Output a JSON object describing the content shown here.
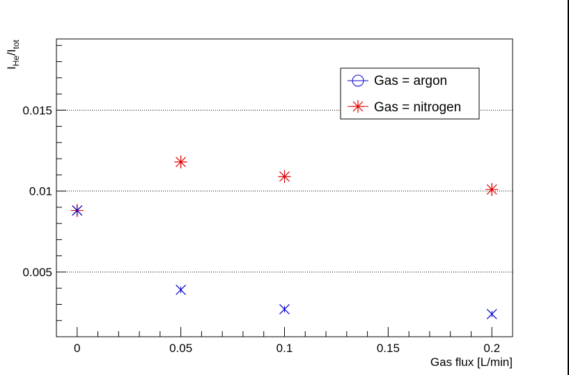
{
  "chart_data": {
    "type": "scatter",
    "title": "",
    "xlabel": "Gas flux [L/min]",
    "ylabel": {
      "main": "I",
      "sub1": "He",
      "slash": "/I",
      "sub2": "tot"
    },
    "xlim": [
      -0.01,
      0.21
    ],
    "ylim": [
      0.001,
      0.0194
    ],
    "x_ticks": [
      {
        "value": 0,
        "label": "0"
      },
      {
        "value": 0.05,
        "label": "0.05"
      },
      {
        "value": 0.1,
        "label": "0.1"
      },
      {
        "value": 0.15,
        "label": "0.15"
      },
      {
        "value": 0.2,
        "label": "0.2"
      }
    ],
    "y_ticks": [
      {
        "value": 0.005,
        "label": "0.005"
      },
      {
        "value": 0.01,
        "label": "0.01"
      },
      {
        "value": 0.015,
        "label": "0.015"
      }
    ],
    "grid": "horizontal dotted",
    "legend_position": "top-right",
    "series": [
      {
        "name": "Gas = argon",
        "color": "#0000cc",
        "legend_marker": "open-circle",
        "point_marker": "cross-x",
        "points": [
          {
            "x": 0,
            "y": 0.0088,
            "err": 0.0003
          },
          {
            "x": 0.05,
            "y": 0.0039,
            "err": 0.0002
          },
          {
            "x": 0.1,
            "y": 0.0027,
            "err": 0.0002
          },
          {
            "x": 0.2,
            "y": 0.0024,
            "err": 0.0002
          }
        ]
      },
      {
        "name": "Gas = nitrogen",
        "color": "#dd0000",
        "legend_marker": "asterisk",
        "point_marker": "asterisk",
        "points": [
          {
            "x": 0,
            "y": 0.0088,
            "err": 0.0004
          },
          {
            "x": 0.05,
            "y": 0.0118,
            "err": 0.0004
          },
          {
            "x": 0.1,
            "y": 0.0109,
            "err": 0.0004
          },
          {
            "x": 0.2,
            "y": 0.0101,
            "err": 0.0004
          }
        ]
      }
    ]
  }
}
